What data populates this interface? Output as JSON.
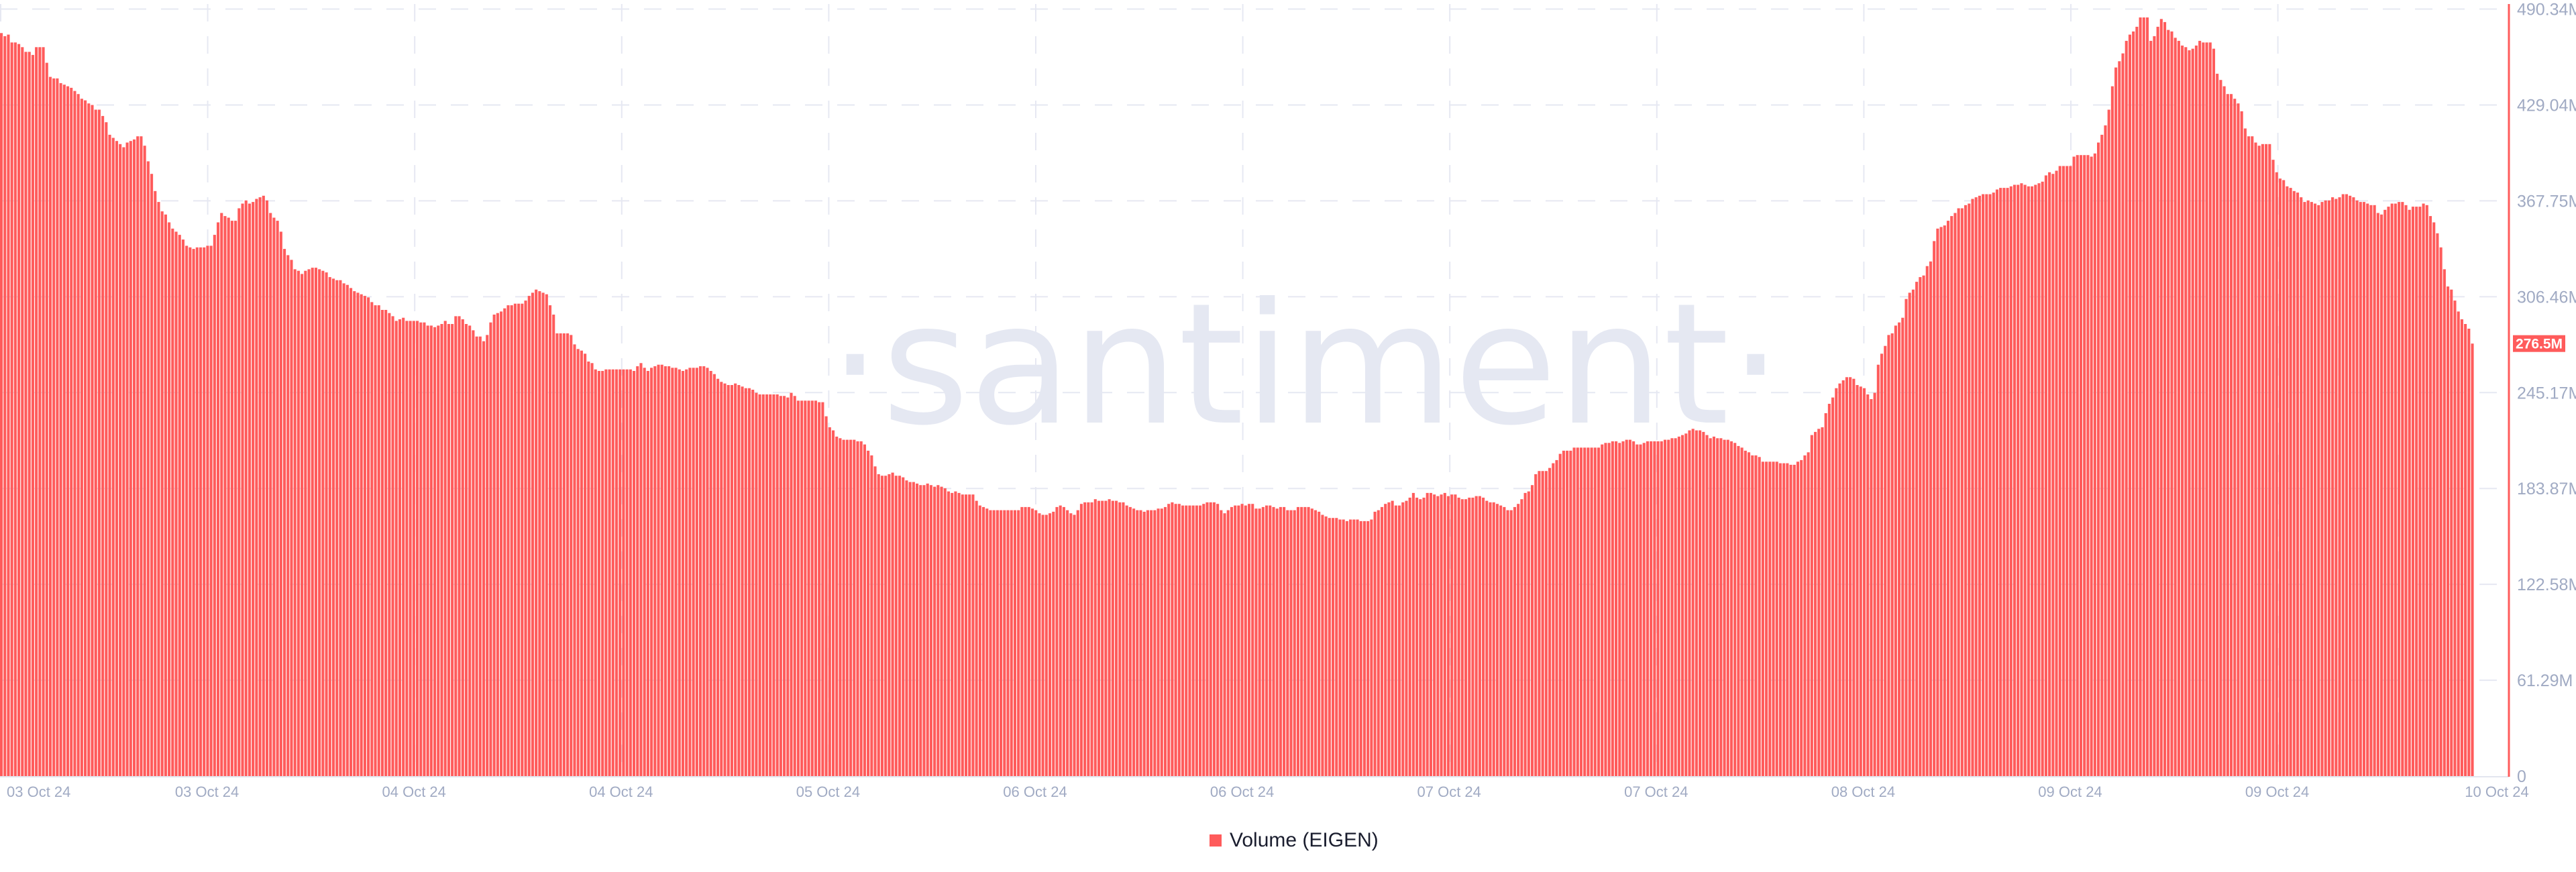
{
  "chart_data": {
    "type": "bar",
    "title": "",
    "watermark": "·santiment·",
    "series": [
      {
        "name": "Volume (EIGEN)",
        "color": "#ff5b5b",
        "values": [
          475,
          473,
          474,
          469,
          469,
          468,
          466,
          463,
          463,
          461,
          466,
          466,
          466,
          456,
          447,
          446,
          446,
          443,
          442,
          441,
          440,
          438,
          436,
          433,
          432,
          430,
          429,
          426,
          426,
          422,
          418,
          410,
          408,
          406,
          404,
          402,
          405,
          406,
          407,
          409,
          409,
          403,
          393,
          385,
          374,
          367,
          361,
          359,
          354,
          350,
          348,
          346,
          343,
          339,
          338,
          337,
          338,
          338,
          338,
          339,
          339,
          346,
          354,
          360,
          358,
          357,
          355,
          355,
          363,
          366,
          368,
          366,
          367,
          369,
          370,
          371,
          368,
          360,
          357,
          355,
          348,
          337,
          333,
          330,
          324,
          323,
          321,
          323,
          324,
          325,
          325,
          324,
          323,
          322,
          319,
          318,
          317,
          317,
          315,
          314,
          312,
          310,
          309,
          308,
          307,
          306,
          303,
          301,
          301,
          298,
          298,
          296,
          294,
          291,
          292,
          293,
          291,
          291,
          291,
          291,
          290,
          290,
          288,
          288,
          287,
          288,
          289,
          291,
          289,
          289,
          294,
          294,
          292,
          289,
          288,
          285,
          281,
          281,
          278,
          282,
          290,
          295,
          296,
          297,
          299,
          301,
          301,
          302,
          302,
          302,
          304,
          307,
          309,
          311,
          310,
          309,
          308,
          301,
          295,
          283,
          283,
          283,
          283,
          282,
          276,
          273,
          272,
          270,
          265,
          264,
          260,
          259,
          259,
          260,
          260,
          260,
          260,
          260,
          260,
          260,
          260,
          259,
          262,
          264,
          261,
          259,
          261,
          262,
          263,
          263,
          262,
          262,
          261,
          261,
          260,
          259,
          260,
          261,
          261,
          261,
          262,
          262,
          261,
          259,
          257,
          254,
          252,
          251,
          250,
          250,
          251,
          250,
          249,
          248,
          248,
          247,
          245,
          244,
          244,
          244,
          244,
          244,
          244,
          243,
          243,
          242,
          245,
          243,
          240,
          240,
          240,
          240,
          240,
          240,
          239,
          239,
          230,
          223,
          221,
          217,
          216,
          215,
          215,
          215,
          215,
          214,
          214,
          212,
          208,
          205,
          198,
          193,
          192,
          192,
          193,
          194,
          192,
          192,
          191,
          189,
          188,
          188,
          187,
          186,
          186,
          187,
          186,
          185,
          186,
          185,
          184,
          182,
          181,
          182,
          181,
          180,
          180,
          180,
          180,
          176,
          173,
          172,
          171,
          170,
          170,
          170,
          170,
          170,
          170,
          170,
          170,
          170,
          172,
          172,
          172,
          171,
          170,
          168,
          167,
          167,
          168,
          169,
          172,
          173,
          172,
          170,
          168,
          167,
          170,
          174,
          175,
          175,
          175,
          177,
          176,
          176,
          176,
          177,
          176,
          176,
          175,
          175,
          173,
          172,
          171,
          170,
          170,
          169,
          170,
          170,
          170,
          171,
          171,
          172,
          174,
          175,
          174,
          174,
          173,
          173,
          173,
          173,
          173,
          173,
          174,
          175,
          175,
          175,
          174,
          170,
          168,
          170,
          172,
          173,
          173,
          174,
          173,
          174,
          174,
          171,
          171,
          172,
          173,
          173,
          172,
          171,
          172,
          172,
          170,
          170,
          170,
          172,
          172,
          172,
          172,
          171,
          170,
          169,
          167,
          166,
          165,
          165,
          165,
          164,
          164,
          163,
          164,
          164,
          164,
          163,
          163,
          163,
          164,
          169,
          170,
          172,
          174,
          175,
          176,
          173,
          173,
          175,
          176,
          178,
          181,
          178,
          177,
          178,
          181,
          181,
          180,
          179,
          180,
          181,
          179,
          180,
          180,
          178,
          177,
          177,
          178,
          178,
          179,
          179,
          178,
          176,
          175,
          175,
          174,
          173,
          172,
          170,
          170,
          172,
          174,
          177,
          181,
          182,
          186,
          193,
          195,
          195,
          195,
          197,
          200,
          202,
          206,
          208,
          208,
          208,
          210,
          210,
          210,
          210,
          210,
          210,
          210,
          210,
          212,
          213,
          213,
          214,
          214,
          213,
          214,
          215,
          215,
          214,
          212,
          212,
          213,
          214,
          214,
          214,
          214,
          214,
          215,
          215,
          216,
          216,
          217,
          218,
          219,
          221,
          222,
          221,
          221,
          220,
          218,
          216,
          217,
          216,
          216,
          215,
          215,
          214,
          213,
          211,
          210,
          208,
          207,
          205,
          205,
          204,
          201,
          201,
          201,
          201,
          201,
          200,
          200,
          200,
          199,
          199,
          201,
          202,
          205,
          207,
          218,
          220,
          222,
          223,
          232,
          238,
          242,
          248,
          251,
          253,
          255,
          255,
          254,
          250,
          249,
          248,
          244,
          241,
          245,
          263,
          270,
          275,
          282,
          283,
          288,
          290,
          293,
          305,
          309,
          311,
          316,
          319,
          320,
          326,
          329,
          342,
          350,
          351,
          352,
          355,
          358,
          360,
          363,
          363,
          365,
          366,
          369,
          370,
          371,
          372,
          372,
          372,
          373,
          375,
          376,
          376,
          376,
          377,
          378,
          378,
          379,
          378,
          377,
          377,
          378,
          379,
          380,
          384,
          386,
          385,
          387,
          390,
          390,
          390,
          390,
          396,
          397,
          397,
          397,
          397,
          396,
          398,
          405,
          410,
          416,
          426,
          441,
          453,
          457,
          462,
          470,
          474,
          476,
          479,
          485,
          485,
          485,
          470,
          473,
          479,
          484,
          482,
          477,
          476,
          472,
          470,
          467,
          466,
          464,
          465,
          467,
          470,
          469,
          469,
          469,
          465,
          449,
          445,
          441,
          436,
          436,
          433,
          430,
          425,
          414,
          409,
          409,
          405,
          403,
          404,
          404,
          404,
          394,
          386,
          382,
          381,
          377,
          376,
          374,
          373,
          370,
          367,
          368,
          367,
          366,
          365,
          367,
          368,
          368,
          370,
          369,
          370,
          372,
          372,
          371,
          370,
          368,
          367,
          367,
          366,
          365,
          365,
          360,
          359,
          362,
          364,
          366,
          366,
          367,
          367,
          365,
          362,
          364,
          364,
          364,
          366,
          365,
          358,
          354,
          347,
          338,
          324,
          313,
          311,
          304,
          297,
          292,
          289,
          286,
          276.5
        ]
      }
    ],
    "value_unit": "M",
    "xlabel": "",
    "ylabel": "",
    "x_tick_labels": [
      "03 Oct 24",
      "03 Oct 24",
      "04 Oct 24",
      "04 Oct 24",
      "05 Oct 24",
      "06 Oct 24",
      "06 Oct 24",
      "07 Oct 24",
      "07 Oct 24",
      "08 Oct 24",
      "09 Oct 24",
      "09 Oct 24",
      "10 Oct 24"
    ],
    "y_ticks": [
      0,
      61.29,
      122.58,
      183.87,
      245.17,
      306.46,
      367.75,
      429.04,
      490.34
    ],
    "y_tick_labels": [
      "0",
      "61.29M",
      "122.58M",
      "183.87M",
      "245.17M",
      "306.46M",
      "367.75M",
      "429.04M",
      "490.34M"
    ],
    "ylim": [
      0,
      490.34
    ],
    "y_axis_position": "right",
    "grid": true,
    "last_value": 276.5,
    "last_value_label": "276.5M",
    "legend": {
      "label": "Volume (EIGEN)",
      "placement": "bottom-center"
    }
  }
}
